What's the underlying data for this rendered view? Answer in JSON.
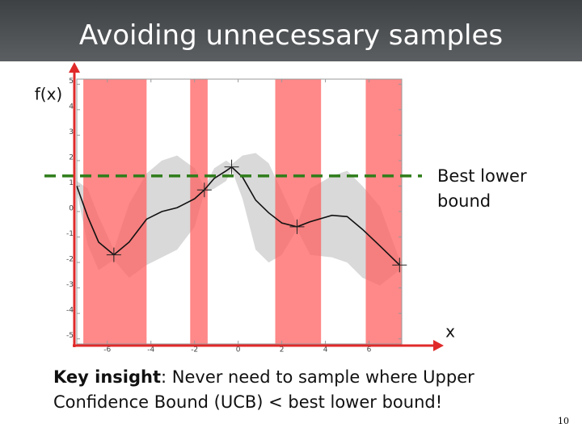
{
  "slide": {
    "title": "Avoiding unnecessary samples",
    "key_insight_label": "Key insight",
    "key_insight_text": ": Never need to sample where Upper Confidence Bound (UCB) < best lower bound!",
    "page_number": "10"
  },
  "chart_data": {
    "type": "line",
    "y_label": "f(x)",
    "x_label": "x",
    "xlim": [
      -7.4,
      7.5
    ],
    "ylim": [
      -5.2,
      5.2
    ],
    "xticks": [
      -6,
      -4,
      -2,
      0,
      2,
      4,
      6
    ],
    "yticks": [
      -5,
      -4,
      -3,
      -2,
      -1,
      0,
      1,
      2,
      3,
      4,
      5
    ],
    "x": [
      -7.4,
      -6.9,
      -6.4,
      -5.7,
      -5.0,
      -4.2,
      -3.5,
      -2.8,
      -2.0,
      -1.55,
      -1.1,
      -0.55,
      -0.3,
      0.2,
      0.8,
      1.4,
      2.0,
      2.7,
      3.3,
      4.3,
      5.0,
      5.7,
      6.5,
      7.4
    ],
    "series": [
      {
        "color": "#111111",
        "values": [
          1.0,
          -0.2,
          -1.2,
          -1.7,
          -1.2,
          -0.3,
          0.0,
          0.15,
          0.5,
          0.85,
          1.3,
          1.6,
          1.75,
          1.35,
          0.45,
          -0.05,
          -0.45,
          -0.6,
          -0.4,
          -0.15,
          -0.2,
          -0.7,
          -1.35,
          -2.1
        ]
      }
    ],
    "band": {
      "color": "#d9d9d9",
      "upper": [
        1.2,
        0.9,
        -0.2,
        -1.5,
        0.3,
        1.5,
        2.0,
        2.2,
        1.7,
        0.95,
        1.7,
        2.0,
        1.85,
        2.2,
        2.3,
        1.9,
        0.8,
        -0.5,
        0.9,
        1.4,
        1.6,
        1.0,
        0.2,
        -1.9
      ],
      "lower": [
        0.8,
        -1.3,
        -2.3,
        -1.9,
        -2.6,
        -2.1,
        -1.8,
        -1.5,
        -0.6,
        0.75,
        0.9,
        1.2,
        1.65,
        0.5,
        -1.5,
        -2.0,
        -1.7,
        -0.7,
        -1.7,
        -1.8,
        -2.0,
        -2.6,
        -2.9,
        -2.3
      ]
    },
    "samples": {
      "x": [
        -5.7,
        -1.55,
        -0.3,
        2.7,
        7.4
      ],
      "y": [
        -1.7,
        0.85,
        1.75,
        -0.6,
        -2.1
      ]
    },
    "regions": {
      "color": "#ff5a5a",
      "spans": [
        [
          -7.1,
          -4.2
        ],
        [
          -2.2,
          -1.4
        ],
        [
          1.7,
          3.8
        ],
        [
          5.85,
          7.5
        ]
      ]
    },
    "threshold": {
      "value": 1.4,
      "label": "Best lower bound",
      "color": "#2e7d1a"
    },
    "axis_color": "#e02a2a"
  }
}
